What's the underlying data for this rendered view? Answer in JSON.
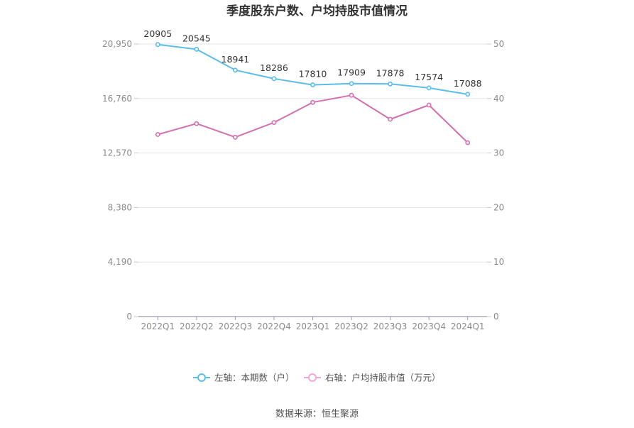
{
  "chart_data": {
    "type": "line",
    "title": "季度股东户数、户均持股市值情况",
    "categories": [
      "2022Q1",
      "2022Q2",
      "2022Q3",
      "2022Q4",
      "2023Q1",
      "2023Q2",
      "2023Q3",
      "2023Q4",
      "2024Q1"
    ],
    "series": [
      {
        "name": "左轴：本期数（户）",
        "axis": "left",
        "color": "#5bbcea",
        "values": [
          20905,
          20545,
          18941,
          18286,
          17810,
          17909,
          17878,
          17574,
          17088
        ],
        "data_labels": [
          "20905",
          "20545",
          "18941",
          "18286",
          "17810",
          "17909",
          "17878",
          "17574",
          "17088"
        ]
      },
      {
        "name": "右轴：户均持股市值（万元）",
        "axis": "right",
        "color": "#d36fb0",
        "values": [
          33.4,
          35.4,
          32.9,
          35.6,
          39.3,
          40.6,
          36.2,
          38.8,
          31.9
        ]
      }
    ],
    "left_axis": {
      "min": 0,
      "max": 20950,
      "ticks": [
        0,
        4190,
        8380,
        12570,
        16760,
        20950
      ],
      "tick_labels": [
        "0",
        "4,190",
        "8,380",
        "12,570",
        "16,760",
        "20,950"
      ]
    },
    "right_axis": {
      "min": 0,
      "max": 50,
      "ticks": [
        0,
        10,
        20,
        30,
        40,
        50
      ],
      "tick_labels": [
        "0",
        "10",
        "20",
        "30",
        "40",
        "50"
      ]
    },
    "grid": true,
    "legend_position": "bottom",
    "legend_colors": {
      "left": "#5bbcea",
      "right": "#f0a8d6"
    }
  },
  "source": "数据来源：恒生聚源"
}
